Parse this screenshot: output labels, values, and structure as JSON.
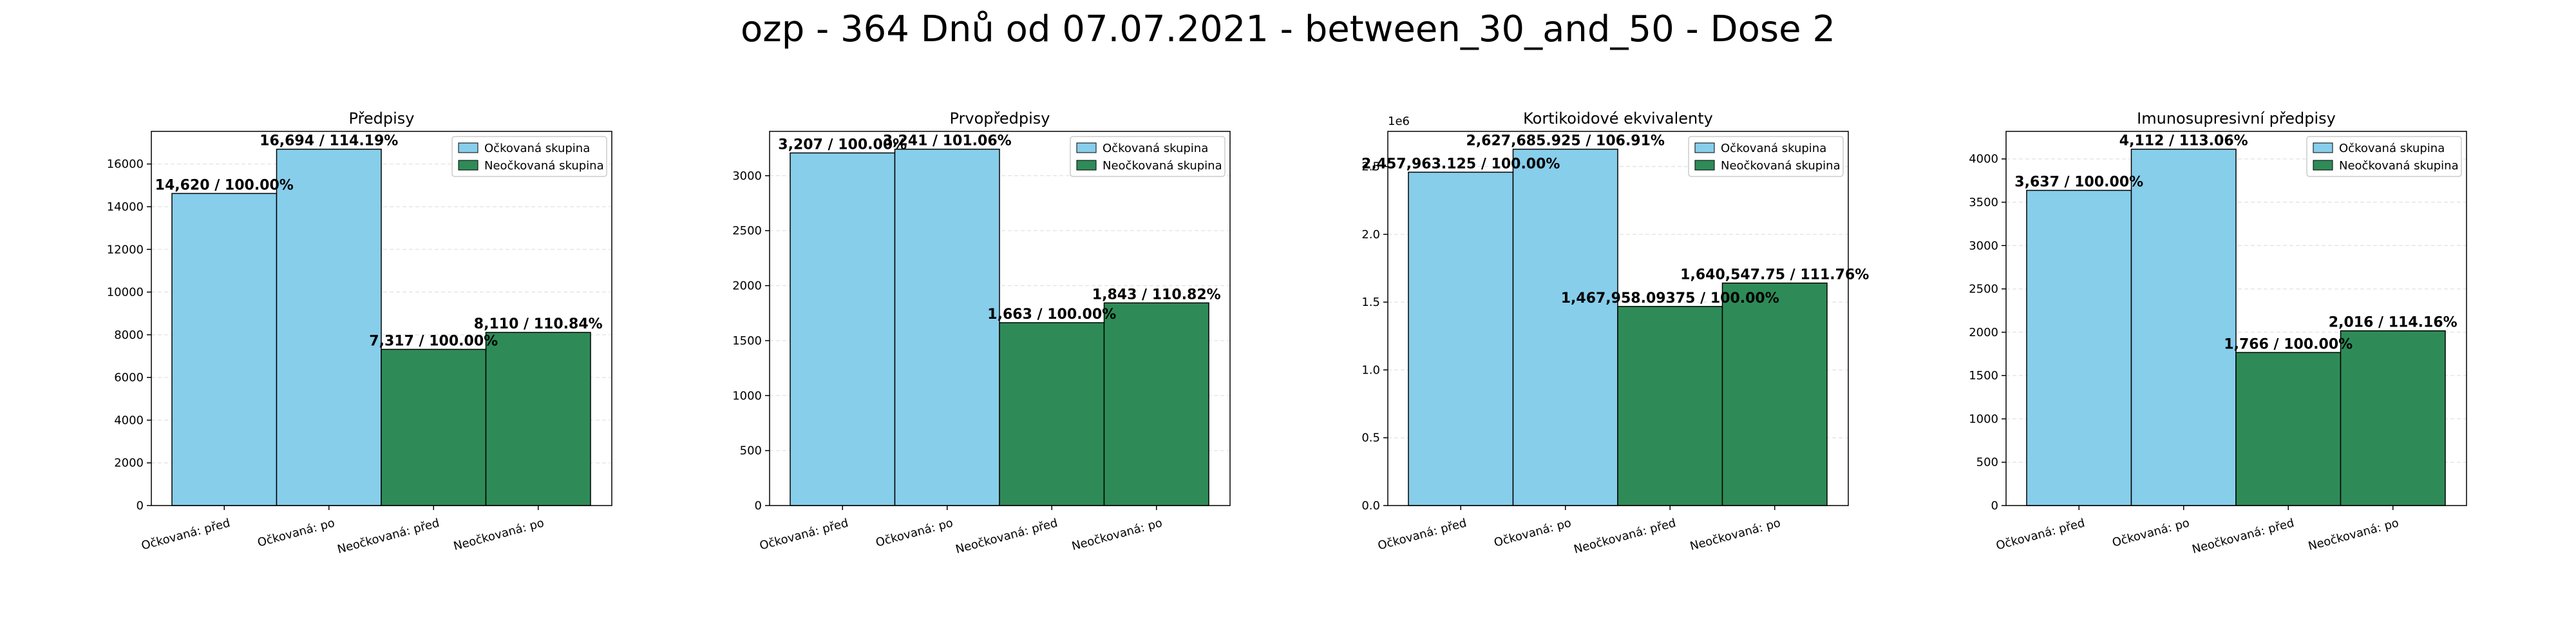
{
  "figure_title": "ozp - 364 Dnů od 07.07.2021 - between_30_and_50 - Dose 2",
  "colors": {
    "vaccinated": "#87ceeb",
    "unvaccinated": "#2e8b57",
    "edge": "#000000",
    "grid": "#e6e6e6"
  },
  "chart_data": [
    {
      "type": "bar",
      "title": "Předpisy",
      "categories": [
        "Očkovaná: před",
        "Očkovaná: po",
        "Neočkovaná: před",
        "Neočkovaná: po"
      ],
      "values": [
        14620,
        16694,
        7317,
        8110
      ],
      "bar_labels": [
        "14,620 / 100.00%",
        "16,694 / 114.19%",
        "7,317 / 100.00%",
        "8,110 / 110.84%"
      ],
      "groups": [
        "vaccinated",
        "vaccinated",
        "unvaccinated",
        "unvaccinated"
      ],
      "legend": [
        "Očkovaná skupina",
        "Neočkovaná skupina"
      ],
      "legend_position": "top-right",
      "ylim": [
        0,
        17528.7
      ],
      "yticks": [
        0,
        2000,
        4000,
        6000,
        8000,
        10000,
        12000,
        14000,
        16000
      ],
      "ytick_labels": [
        "0",
        "2000",
        "4000",
        "6000",
        "8000",
        "10000",
        "12000",
        "14000",
        "16000"
      ],
      "grid": "horizontal, light dashed"
    },
    {
      "type": "bar",
      "title": "Prvopředpisy",
      "categories": [
        "Očkovaná: před",
        "Očkovaná: po",
        "Neočkovaná: před",
        "Neočkovaná: po"
      ],
      "values": [
        3207,
        3241,
        1663,
        1843
      ],
      "bar_labels": [
        "3,207 / 100.00%",
        "3,241 / 101.06%",
        "1,663 / 100.00%",
        "1,843 / 110.82%"
      ],
      "groups": [
        "vaccinated",
        "vaccinated",
        "unvaccinated",
        "unvaccinated"
      ],
      "legend": [
        "Očkovaná skupina",
        "Neočkovaná skupina"
      ],
      "legend_position": "top-right",
      "ylim": [
        0,
        3403.05
      ],
      "yticks": [
        0,
        500,
        1000,
        1500,
        2000,
        2500,
        3000
      ],
      "ytick_labels": [
        "0",
        "500",
        "1000",
        "1500",
        "2000",
        "2500",
        "3000"
      ],
      "grid": "horizontal, light dashed"
    },
    {
      "type": "bar",
      "title": "Kortikoidové ekvivalenty",
      "categories": [
        "Očkovaná: před",
        "Očkovaná: po",
        "Neočkovaná: před",
        "Neočkovaná: po"
      ],
      "values": [
        2457963.125,
        2627685.925,
        1467958.09375,
        1640547.75
      ],
      "bar_labels": [
        "2,457,963.125 / 100.00%",
        "2,627,685.925 / 106.91%",
        "1,467,958.09375 / 100.00%",
        "1,640,547.75 / 111.76%"
      ],
      "groups": [
        "vaccinated",
        "vaccinated",
        "unvaccinated",
        "unvaccinated"
      ],
      "legend": [
        "Očkovaná skupina",
        "Neočkovaná skupina"
      ],
      "legend_position": "top-right",
      "ylim": [
        0,
        2759070.2
      ],
      "yticks": [
        0,
        500000,
        1000000,
        1500000,
        2000000,
        2500000
      ],
      "ytick_labels": [
        "0.0",
        "0.5",
        "1.0",
        "1.5",
        "2.0",
        "2.5"
      ],
      "y_offset_label": "1e6",
      "grid": "horizontal, light dashed"
    },
    {
      "type": "bar",
      "title": "Imunosupresivní předpisy",
      "categories": [
        "Očkovaná: před",
        "Očkovaná: po",
        "Neočkovaná: před",
        "Neočkovaná: po"
      ],
      "values": [
        3637,
        4112,
        1766,
        2016
      ],
      "bar_labels": [
        "3,637 / 100.00%",
        "4,112 / 113.06%",
        "1,766 / 100.00%",
        "2,016 / 114.16%"
      ],
      "groups": [
        "vaccinated",
        "vaccinated",
        "unvaccinated",
        "unvaccinated"
      ],
      "legend": [
        "Očkovaná skupina",
        "Neočkovaná skupina"
      ],
      "legend_position": "top-right",
      "ylim": [
        0,
        4317.6
      ],
      "yticks": [
        0,
        500,
        1000,
        1500,
        2000,
        2500,
        3000,
        3500,
        4000
      ],
      "ytick_labels": [
        "0",
        "500",
        "1000",
        "1500",
        "2000",
        "2500",
        "3000",
        "3500",
        "4000"
      ],
      "grid": "horizontal, light dashed"
    }
  ]
}
